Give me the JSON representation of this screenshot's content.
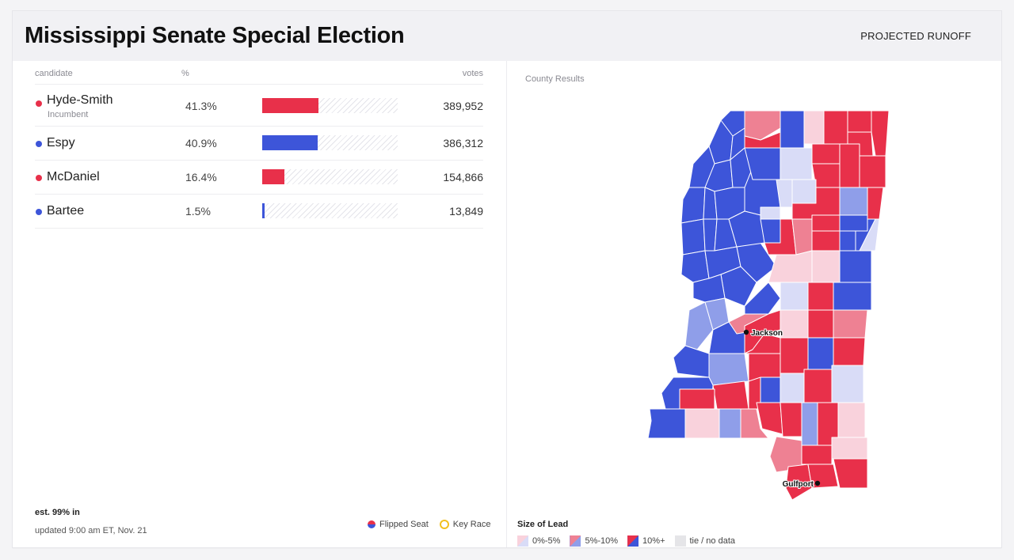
{
  "header": {
    "title": "Mississippi Senate Special Election",
    "status": "PROJECTED RUNOFF"
  },
  "table": {
    "col_candidate": "candidate",
    "col_pct": "%",
    "col_votes": "votes",
    "rows": [
      {
        "name": "Hyde-Smith",
        "note": "Incumbent",
        "pct": "41.3%",
        "share": 41.3,
        "votes": "389,952",
        "color": "#e8304a"
      },
      {
        "name": "Espy",
        "note": "",
        "pct": "40.9%",
        "share": 40.9,
        "votes": "386,312",
        "color": "#3d55d9"
      },
      {
        "name": "McDaniel",
        "note": "",
        "pct": "16.4%",
        "share": 16.4,
        "votes": "154,866",
        "color": "#e8304a"
      },
      {
        "name": "Bartee",
        "note": "",
        "pct": "1.5%",
        "share": 1.5,
        "votes": "13,849",
        "color": "#3d55d9"
      }
    ]
  },
  "footer": {
    "reporting": "est. 99% in",
    "updated": "updated 9:00 am ET, Nov. 21",
    "flipped_label": "Flipped Seat",
    "key_race_label": "Key Race"
  },
  "map": {
    "label": "County Results",
    "city_jackson": "Jackson",
    "city_gulfport": "Gulfport"
  },
  "lead_legend": {
    "title": "Size of Lead",
    "items": [
      {
        "label": "0%-5%",
        "rep": "#f9d2dc",
        "dem": "#d9dcf7"
      },
      {
        "label": "5%-10%",
        "rep": "#ee8193",
        "dem": "#8f9ee9"
      },
      {
        "label": "10%+",
        "rep": "#e8304a",
        "dem": "#3d55d9"
      },
      {
        "label": "tie / no data",
        "rep": "#e5e5e8",
        "dem": "#e5e5e8"
      }
    ]
  },
  "colors": {
    "rep_strong": "#e8304a",
    "rep_mid": "#ee8193",
    "rep_light": "#f9d2dc",
    "dem_strong": "#3d55d9",
    "dem_mid": "#8f9ee9",
    "dem_light": "#d9dcf7"
  }
}
